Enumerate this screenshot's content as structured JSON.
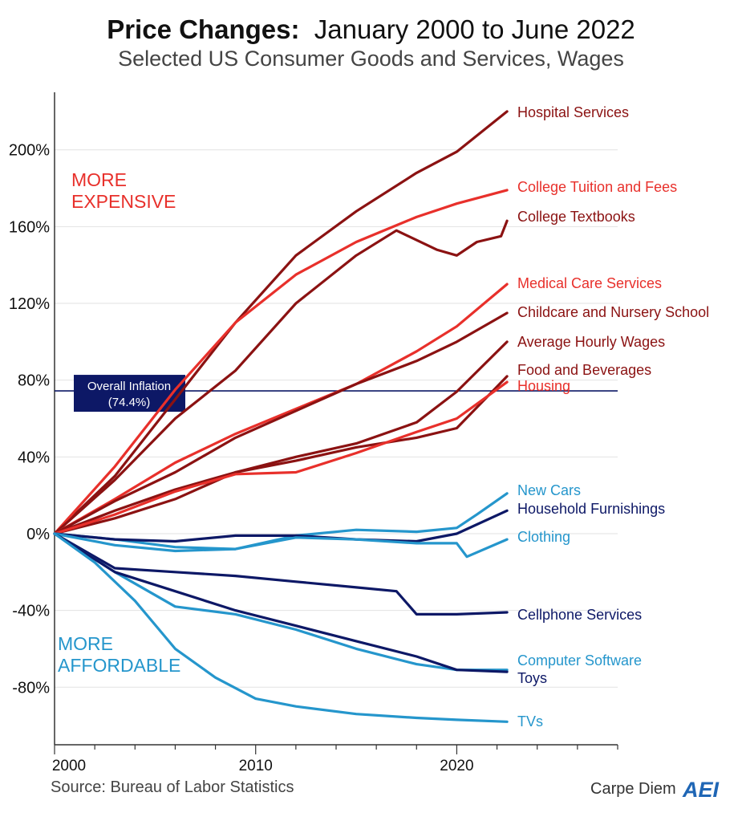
{
  "title": {
    "bold": "Price Changes:",
    "rest": "January 2000 to June 2022",
    "subtitle": "Selected US Consumer Goods and Services, Wages"
  },
  "source": "Source: Bureau of Labor Statistics",
  "brand": {
    "text": "Carpe Diem",
    "logo_text": "AEI",
    "logo_color": "#1f66b5"
  },
  "annotations": {
    "more_expensive": [
      "MORE",
      "EXPENSIVE"
    ],
    "more_affordable": [
      "MORE",
      "AFFORDABLE"
    ],
    "inflation_box": [
      "Overall Inflation",
      "(74.4%)"
    ]
  },
  "chart_data": {
    "type": "line",
    "x_ticks": [
      "2000",
      "2010",
      "2020"
    ],
    "y_ticks": [
      "200%",
      "160%",
      "120%",
      "80%",
      "40%",
      "0%",
      "-40%",
      "-80%"
    ],
    "xlim": [
      2000,
      2028
    ],
    "ylim": [
      -110,
      230
    ],
    "y_unit": "%",
    "reference_line": {
      "label": "Overall Inflation (74.4%)",
      "value": 74.4,
      "color": "#0d1866"
    },
    "colors": {
      "dark_red": "#8b1212",
      "red": "#e8302b",
      "light_blue": "#2596cc",
      "navy": "#0d1866"
    },
    "series": [
      {
        "name": "Hospital Services",
        "color": "#8b1212",
        "x": [
          2000,
          2003,
          2006,
          2009,
          2012,
          2015,
          2018,
          2020,
          2022.5
        ],
        "y": [
          0,
          30,
          70,
          110,
          145,
          168,
          188,
          199,
          220
        ]
      },
      {
        "name": "College Tuition and Fees",
        "color": "#e8302b",
        "x": [
          2000,
          2003,
          2006,
          2009,
          2012,
          2015,
          2018,
          2020,
          2022.5
        ],
        "y": [
          0,
          35,
          75,
          110,
          135,
          152,
          165,
          172,
          179
        ]
      },
      {
        "name": "College Textbooks",
        "color": "#8b1212",
        "x": [
          2000,
          2003,
          2006,
          2009,
          2012,
          2015,
          2017,
          2019,
          2020,
          2021,
          2022.2,
          2022.5
        ],
        "y": [
          0,
          28,
          60,
          85,
          120,
          145,
          158,
          148,
          145,
          152,
          155,
          163
        ]
      },
      {
        "name": "Medical Care Services",
        "color": "#e8302b",
        "x": [
          2000,
          2003,
          2006,
          2009,
          2012,
          2015,
          2018,
          2020,
          2022.5
        ],
        "y": [
          0,
          18,
          37,
          52,
          65,
          78,
          95,
          108,
          130
        ]
      },
      {
        "name": "Childcare and Nursery School",
        "color": "#8b1212",
        "x": [
          2000,
          2003,
          2006,
          2009,
          2012,
          2015,
          2018,
          2020,
          2022.5
        ],
        "y": [
          0,
          17,
          32,
          50,
          64,
          78,
          90,
          100,
          115
        ]
      },
      {
        "name": "Average Hourly Wages",
        "color": "#8b1212",
        "x": [
          2000,
          2003,
          2006,
          2009,
          2012,
          2015,
          2018,
          2020,
          2022.5
        ],
        "y": [
          0,
          12,
          23,
          32,
          40,
          47,
          58,
          74,
          100
        ]
      },
      {
        "name": "Food and Beverages",
        "color": "#8b1212",
        "x": [
          2000,
          2003,
          2006,
          2009,
          2012,
          2015,
          2018,
          2020,
          2022.5
        ],
        "y": [
          0,
          8,
          18,
          32,
          38,
          45,
          50,
          55,
          82
        ]
      },
      {
        "name": "Housing",
        "color": "#e8302b",
        "x": [
          2000,
          2003,
          2006,
          2009,
          2012,
          2015,
          2018,
          2020,
          2022.5
        ],
        "y": [
          0,
          10,
          22,
          31,
          32,
          42,
          53,
          60,
          79
        ]
      },
      {
        "name": "New Cars",
        "color": "#2596cc",
        "x": [
          2000,
          2003,
          2006,
          2009,
          2012,
          2015,
          2018,
          2020,
          2021,
          2022.5
        ],
        "y": [
          0,
          -3,
          -7,
          -8,
          -1,
          2,
          1,
          3,
          10,
          21
        ]
      },
      {
        "name": "Household Furnishings",
        "color": "#0d1866",
        "x": [
          2000,
          2003,
          2006,
          2009,
          2012,
          2015,
          2018,
          2020,
          2022.5
        ],
        "y": [
          0,
          -3,
          -4,
          -1,
          -1,
          -3,
          -4,
          0,
          12
        ]
      },
      {
        "name": "Clothing",
        "color": "#2596cc",
        "x": [
          2000,
          2003,
          2006,
          2009,
          2012,
          2015,
          2018,
          2020,
          2020.5,
          2022.5
        ],
        "y": [
          0,
          -6,
          -9,
          -8,
          -2,
          -3,
          -5,
          -5,
          -12,
          -3
        ]
      },
      {
        "name": "Cellphone Services",
        "color": "#0d1866",
        "x": [
          2000,
          2003,
          2006,
          2009,
          2012,
          2015,
          2017,
          2018,
          2020,
          2022.5
        ],
        "y": [
          0,
          -18,
          -20,
          -22,
          -25,
          -28,
          -30,
          -42,
          -42,
          -41
        ]
      },
      {
        "name": "Computer Software",
        "color": "#2596cc",
        "x": [
          2000,
          2003,
          2006,
          2009,
          2012,
          2015,
          2018,
          2020,
          2022.5
        ],
        "y": [
          0,
          -20,
          -38,
          -42,
          -50,
          -60,
          -68,
          -71,
          -71
        ]
      },
      {
        "name": "Toys",
        "color": "#0d1866",
        "x": [
          2000,
          2003,
          2006,
          2009,
          2012,
          2015,
          2018,
          2020,
          2022.5
        ],
        "y": [
          0,
          -20,
          -30,
          -40,
          -48,
          -56,
          -64,
          -71,
          -72
        ]
      },
      {
        "name": "TVs",
        "color": "#2596cc",
        "x": [
          2000,
          2002,
          2004,
          2006,
          2008,
          2010,
          2012,
          2015,
          2018,
          2020,
          2022.5
        ],
        "y": [
          0,
          -15,
          -35,
          -60,
          -75,
          -86,
          -90,
          -94,
          -96,
          -97,
          -98
        ]
      }
    ]
  }
}
